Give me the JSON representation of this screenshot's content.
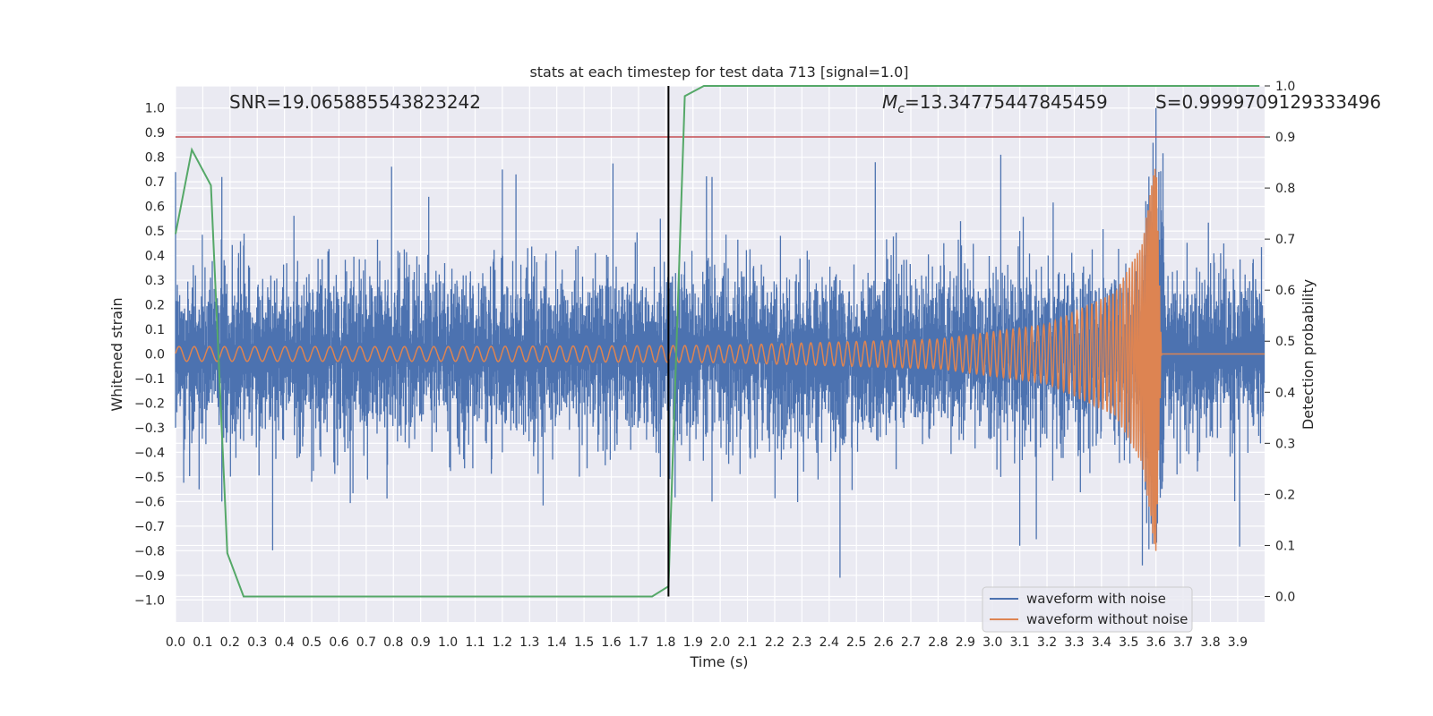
{
  "chart_data": {
    "type": "line",
    "title": "stats at each timestep for test data 713 [signal=1.0]",
    "xlabel": "Time (s)",
    "ylabel_left": "Whitened strain",
    "ylabel_right": "Detection probability",
    "xlim": [
      0.0,
      3.999
    ],
    "ylim_left": [
      -1.09,
      1.09
    ],
    "ylim_right": [
      -0.05,
      1.0
    ],
    "x_ticks": [
      "0.0",
      "0.1",
      "0.2",
      "0.3",
      "0.4",
      "0.5",
      "0.6",
      "0.7",
      "0.8",
      "0.9",
      "1.0",
      "1.1",
      "1.2",
      "1.3",
      "1.4",
      "1.5",
      "1.6",
      "1.7",
      "1.8",
      "1.9",
      "2.0",
      "2.1",
      "2.2",
      "2.3",
      "2.4",
      "2.5",
      "2.6",
      "2.7",
      "2.8",
      "2.9",
      "3.0",
      "3.1",
      "3.2",
      "3.3",
      "3.4",
      "3.5",
      "3.6",
      "3.7",
      "3.8",
      "3.9"
    ],
    "y_ticks_left": [
      "1.0",
      "0.9",
      "0.8",
      "0.7",
      "0.6",
      "0.5",
      "0.4",
      "0.3",
      "0.2",
      "0.1",
      "0.0",
      "−0.1",
      "−0.2",
      "−0.3",
      "−0.4",
      "−0.5",
      "−0.6",
      "−0.7",
      "−0.8",
      "−0.9",
      "−1.0"
    ],
    "y_ticks_right": [
      "1.0",
      "0.9",
      "0.8",
      "0.7",
      "0.6",
      "0.5",
      "0.4",
      "0.3",
      "0.2",
      "0.1",
      "0.0"
    ],
    "annotations": {
      "snr": "SNR=19.065885543823242",
      "mc_symbol": "M",
      "mc_sub": "c",
      "mc_value": "=13.34775447845459",
      "s": "S=0.9999709129333496"
    },
    "threshold_line": {
      "axis": "right",
      "y": 0.9,
      "color": "#c44e52"
    },
    "detection_marker": {
      "x": 1.81,
      "color": "#000000"
    },
    "legend": {
      "placement": "lower-right",
      "entries": [
        {
          "label": "waveform with noise",
          "color": "#4c72b0"
        },
        {
          "label": "waveform without noise",
          "color": "#dd8452"
        }
      ]
    },
    "series": [
      {
        "name": "waveform with noise",
        "axis": "left",
        "color": "#4c72b0",
        "description_envelope": "noise amplitude approx ±0.4 with spikes up to ±0.8"
      },
      {
        "name": "waveform without noise",
        "axis": "left",
        "color": "#dd8452",
        "envelope": {
          "x": [
            0.0,
            1.0,
            2.0,
            2.8,
            3.2,
            3.45,
            3.55,
            3.6,
            3.62,
            3.63,
            3.99
          ],
          "amp": [
            0.03,
            0.03,
            0.035,
            0.06,
            0.12,
            0.25,
            0.45,
            0.82,
            0.0,
            0.0,
            0.0
          ]
        }
      },
      {
        "axis": "right",
        "color": "#55a868",
        "x": [
          0.0,
          0.06,
          0.13,
          0.19,
          0.25,
          1.75,
          1.81,
          1.87,
          1.94,
          3.98
        ],
        "y": [
          0.71,
          0.875,
          0.805,
          0.085,
          0.0,
          0.0,
          0.02,
          0.98,
          1.0,
          1.0
        ]
      }
    ]
  }
}
